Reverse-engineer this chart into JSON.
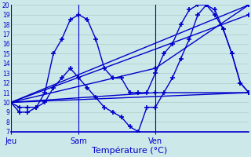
{
  "title": "Température (°C)",
  "background_color": "#cce8e8",
  "grid_color": "#aacece",
  "line_color": "#0000cc",
  "marker": "+",
  "marker_size": 4,
  "marker_lw": 1.2,
  "line_width": 1.0,
  "ylim": [
    7,
    20
  ],
  "yticks": [
    7,
    8,
    9,
    10,
    11,
    12,
    13,
    14,
    15,
    16,
    17,
    18,
    19,
    20
  ],
  "xlim": [
    0,
    28
  ],
  "day_ticks": [
    0,
    8,
    17
  ],
  "day_labels": [
    "Jeu",
    "Sam",
    "Ven"
  ],
  "series": [
    {
      "x": [
        0,
        1,
        2,
        3,
        4,
        5,
        6,
        7,
        8,
        9,
        10,
        11,
        12,
        13,
        14,
        15,
        16,
        17,
        18,
        19,
        20,
        21,
        22,
        23,
        24,
        25,
        26,
        27,
        28
      ],
      "y": [
        10,
        9,
        9,
        9.5,
        11,
        15,
        16.5,
        18.5,
        19,
        18.5,
        16.5,
        13.5,
        12.5,
        12.5,
        11,
        11,
        11,
        13,
        15,
        16,
        18,
        19.5,
        20,
        20,
        19,
        17.5,
        15,
        12,
        11
      ]
    },
    {
      "x": [
        0,
        1,
        2,
        3,
        4,
        5,
        6,
        7,
        8,
        9,
        10,
        11,
        12,
        13,
        14,
        15,
        16,
        17,
        18,
        19,
        20,
        21,
        22,
        23,
        24,
        25,
        26,
        27,
        28
      ],
      "y": [
        10,
        9.5,
        9.5,
        9.5,
        10,
        11.5,
        12.5,
        13.5,
        12.5,
        11.5,
        10.5,
        9.5,
        9,
        8.5,
        7.5,
        7,
        9.5,
        9.5,
        11,
        12.5,
        14.5,
        16.5,
        19,
        20,
        19.5,
        17.5,
        15,
        12,
        11
      ]
    },
    {
      "x": [
        0,
        28
      ],
      "y": [
        10,
        11
      ]
    },
    {
      "x": [
        0,
        28
      ],
      "y": [
        10,
        19
      ]
    },
    {
      "x": [
        0,
        28
      ],
      "y": [
        10,
        20
      ]
    },
    {
      "x": [
        0,
        17,
        28
      ],
      "y": [
        10,
        11,
        11
      ]
    },
    {
      "x": [
        0,
        17,
        28
      ],
      "y": [
        10,
        13.5,
        20
      ]
    }
  ]
}
